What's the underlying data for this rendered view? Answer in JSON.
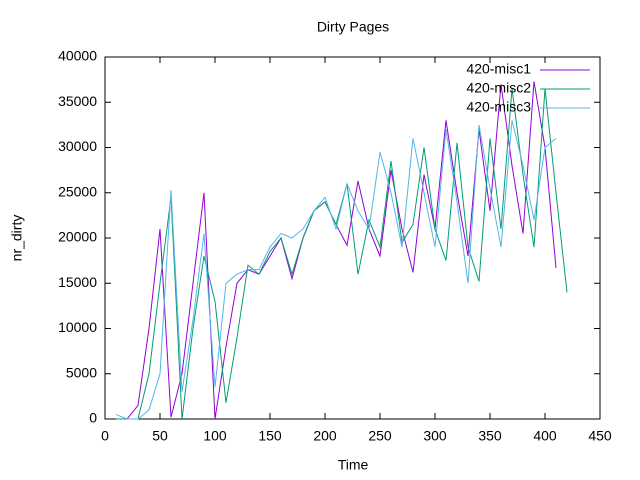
{
  "chart_data": {
    "type": "line",
    "title": "Dirty Pages",
    "x_label": "Time",
    "y_label": "nr_dirty",
    "xlim": [
      0,
      450
    ],
    "xticks": [
      0,
      50,
      100,
      150,
      200,
      250,
      300,
      350,
      400,
      450
    ],
    "ylim": [
      0,
      40000
    ],
    "yticks": [
      0,
      5000,
      10000,
      15000,
      20000,
      25000,
      30000,
      35000,
      40000
    ],
    "legend": "top-right",
    "series": [
      {
        "name": "420-misc1",
        "color": "#9400d3",
        "x": [
          10,
          20,
          30,
          40,
          50,
          60,
          70,
          80,
          90,
          100,
          110,
          120,
          130,
          140,
          150,
          160,
          170,
          180,
          190,
          200,
          210,
          220,
          230,
          240,
          250,
          260,
          270,
          280,
          290,
          300,
          310,
          320,
          330,
          340,
          350,
          360,
          370,
          380,
          390,
          400,
          410
        ],
        "values": [
          0,
          0,
          1500,
          10000,
          21000,
          200,
          5000,
          15000,
          25000,
          0,
          8000,
          15000,
          16500,
          16000,
          18000,
          20000,
          15500,
          20000,
          23000,
          24000,
          21500,
          19200,
          26300,
          21000,
          18000,
          27500,
          21000,
          16200,
          27000,
          21000,
          33000,
          25000,
          18000,
          32000,
          23000,
          37000,
          28000,
          20500,
          37300,
          30000,
          16700
        ]
      },
      {
        "name": "420-misc2",
        "color": "#009e73",
        "x": [
          10,
          20,
          30,
          40,
          50,
          60,
          70,
          80,
          90,
          100,
          110,
          120,
          130,
          140,
          150,
          160,
          170,
          180,
          190,
          200,
          210,
          220,
          230,
          240,
          250,
          260,
          270,
          280,
          290,
          300,
          310,
          320,
          330,
          340,
          350,
          360,
          370,
          380,
          390,
          400,
          410,
          420
        ],
        "values": [
          0,
          0,
          0,
          5000,
          15000,
          24500,
          0,
          10000,
          18000,
          13000,
          1800,
          9000,
          17000,
          16000,
          18500,
          20000,
          16000,
          20000,
          23000,
          24000,
          21500,
          26000,
          16000,
          22000,
          19000,
          28500,
          19500,
          21500,
          30000,
          21000,
          17500,
          30500,
          19000,
          15200,
          31000,
          21000,
          36500,
          27000,
          19000,
          36500,
          25000,
          14000
        ]
      },
      {
        "name": "420-misc3",
        "color": "#56b4e9",
        "x": [
          10,
          20,
          30,
          40,
          50,
          60,
          70,
          80,
          90,
          100,
          110,
          120,
          130,
          140,
          150,
          160,
          170,
          180,
          190,
          200,
          210,
          220,
          230,
          240,
          250,
          260,
          270,
          280,
          290,
          300,
          310,
          320,
          330,
          340,
          350,
          360,
          370,
          380,
          390,
          400,
          410
        ],
        "values": [
          500,
          0,
          0,
          1000,
          5000,
          25300,
          3000,
          11000,
          20500,
          3500,
          15000,
          16000,
          16500,
          16500,
          19000,
          20500,
          20000,
          21000,
          23000,
          24500,
          21000,
          26000,
          23000,
          21000,
          29500,
          25000,
          19000,
          31000,
          25000,
          19000,
          32000,
          24000,
          15000,
          32500,
          25500,
          19000,
          33000,
          28000,
          22000,
          30000,
          31000
        ]
      }
    ]
  }
}
